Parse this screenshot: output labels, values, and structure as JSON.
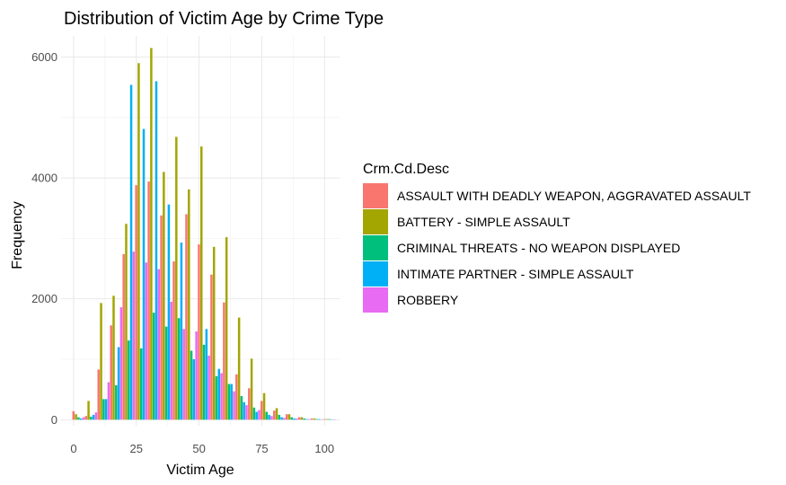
{
  "chart_data": {
    "type": "bar",
    "title": "Distribution of Victim Age by Crime Type",
    "xlabel": "Victim Age",
    "ylabel": "Frequency",
    "xlim": [
      -5,
      106
    ],
    "ylim": [
      -100,
      6350
    ],
    "x_ticks": [
      0,
      25,
      50,
      75,
      100
    ],
    "y_ticks": [
      0,
      2000,
      4000,
      6000
    ],
    "grid": true,
    "legend": {
      "title": "Crm.Cd.Desc",
      "placement": "right"
    },
    "x": [
      2,
      7,
      12,
      17,
      22,
      27,
      32,
      37,
      42,
      47,
      52,
      57,
      62,
      67,
      72,
      77,
      82,
      87,
      92,
      97,
      102
    ],
    "series": [
      {
        "name": "ASSAULT WITH DEADLY WEAPON, AGGRAVATED ASSAULT",
        "color": "#F8766D",
        "values": [
          140,
          60,
          830,
          1560,
          2740,
          3880,
          3940,
          3380,
          2620,
          3400,
          2900,
          2400,
          1940,
          750,
          520,
          310,
          150,
          90,
          40,
          20,
          10
        ]
      },
      {
        "name": "BATTERY - SIMPLE ASSAULT",
        "color": "#A3A500",
        "values": [
          90,
          310,
          1930,
          2050,
          3240,
          5900,
          6150,
          4100,
          4680,
          3810,
          4520,
          2860,
          3020,
          1690,
          1010,
          440,
          190,
          90,
          40,
          20,
          10
        ]
      },
      {
        "name": "CRIMINAL THREATS - NO WEAPON DISPLAYED",
        "color": "#00BF7D",
        "values": [
          40,
          50,
          340,
          570,
          1310,
          1180,
          1770,
          1540,
          1680,
          1140,
          1240,
          720,
          590,
          390,
          200,
          130,
          80,
          40,
          20,
          10,
          10
        ]
      },
      {
        "name": "INTIMATE PARTNER - SIMPLE ASSAULT",
        "color": "#00B0F6",
        "values": [
          20,
          80,
          340,
          1200,
          5540,
          4810,
          5600,
          3560,
          2930,
          1000,
          1500,
          840,
          590,
          290,
          130,
          80,
          40,
          20,
          10,
          10,
          5
        ]
      },
      {
        "name": "ROBBERY",
        "color": "#E76BF3",
        "values": [
          40,
          120,
          620,
          1860,
          2780,
          2600,
          2490,
          1950,
          1500,
          1460,
          1060,
          770,
          470,
          240,
          160,
          60,
          30,
          20,
          10,
          5,
          5
        ]
      }
    ]
  }
}
